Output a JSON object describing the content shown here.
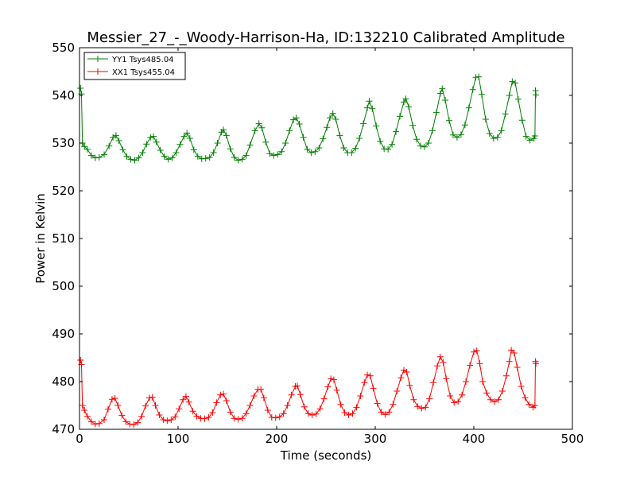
{
  "chart_data": {
    "type": "line",
    "title": "Messier_27_-_Woody-Harrison-Ha, ID:132210 Calibrated Amplitude",
    "xlabel": "Time (seconds)",
    "ylabel": "Power in Kelvin",
    "xlim": [
      0,
      500
    ],
    "ylim": [
      470,
      550
    ],
    "xticks": [
      0,
      100,
      200,
      300,
      400,
      500
    ],
    "yticks": [
      470,
      480,
      490,
      500,
      510,
      520,
      530,
      540,
      550
    ],
    "xtick_labels": [
      "0",
      "100",
      "200",
      "300",
      "400",
      "500"
    ],
    "ytick_labels": [
      "470",
      "480",
      "490",
      "500",
      "510",
      "520",
      "530",
      "540",
      "550"
    ],
    "grid": false,
    "legend": "top-left",
    "marker": "+",
    "series": [
      {
        "name": "YY1 Tsys485.04",
        "color": "#008000",
        "points": [
          [
            1,
            541.5
          ],
          [
            2,
            540.3
          ],
          [
            3,
            530.0
          ],
          [
            5,
            529.3
          ],
          [
            8,
            528.7
          ],
          [
            12,
            527.4
          ],
          [
            16,
            526.9
          ],
          [
            20,
            527.0
          ],
          [
            25,
            527.6
          ],
          [
            30,
            529.4
          ],
          [
            34,
            531.2
          ],
          [
            37,
            531.6
          ],
          [
            40,
            530.5
          ],
          [
            44,
            528.6
          ],
          [
            48,
            527.2
          ],
          [
            52,
            526.6
          ],
          [
            56,
            526.4
          ],
          [
            60,
            526.9
          ],
          [
            64,
            528.0
          ],
          [
            68,
            529.8
          ],
          [
            72,
            531.2
          ],
          [
            75,
            531.4
          ],
          [
            78,
            530.2
          ],
          [
            82,
            528.5
          ],
          [
            86,
            527.2
          ],
          [
            90,
            526.6
          ],
          [
            94,
            526.9
          ],
          [
            98,
            528.0
          ],
          [
            102,
            529.7
          ],
          [
            106,
            531.4
          ],
          [
            109,
            532.1
          ],
          [
            112,
            531.0
          ],
          [
            116,
            528.6
          ],
          [
            120,
            527.2
          ],
          [
            124,
            526.7
          ],
          [
            128,
            526.8
          ],
          [
            132,
            527.0
          ],
          [
            136,
            528.0
          ],
          [
            140,
            530.0
          ],
          [
            144,
            532.3
          ],
          [
            146,
            532.8
          ],
          [
            149,
            531.6
          ],
          [
            153,
            528.8
          ],
          [
            157,
            527.0
          ],
          [
            161,
            526.4
          ],
          [
            165,
            526.6
          ],
          [
            169,
            527.4
          ],
          [
            173,
            529.6
          ],
          [
            178,
            532.6
          ],
          [
            182,
            534.1
          ],
          [
            185,
            533.2
          ],
          [
            189,
            530.2
          ],
          [
            193,
            527.8
          ],
          [
            197,
            527.4
          ],
          [
            201,
            527.6
          ],
          [
            205,
            528.2
          ],
          [
            209,
            530.0
          ],
          [
            213,
            532.6
          ],
          [
            217,
            534.9
          ],
          [
            220,
            535.3
          ],
          [
            223,
            534.0
          ],
          [
            227,
            531.2
          ],
          [
            231,
            528.7
          ],
          [
            235,
            528.0
          ],
          [
            239,
            528.2
          ],
          [
            243,
            529.0
          ],
          [
            247,
            530.9
          ],
          [
            251,
            533.3
          ],
          [
            254,
            535.3
          ],
          [
            257,
            536.2
          ],
          [
            260,
            535.0
          ],
          [
            264,
            531.6
          ],
          [
            268,
            529.0
          ],
          [
            272,
            528.0
          ],
          [
            276,
            528.0
          ],
          [
            280,
            528.9
          ],
          [
            284,
            531.0
          ],
          [
            288,
            534.1
          ],
          [
            292,
            537.4
          ],
          [
            294,
            538.8
          ],
          [
            297,
            537.2
          ],
          [
            301,
            533.6
          ],
          [
            305,
            530.4
          ],
          [
            309,
            528.8
          ],
          [
            313,
            528.7
          ],
          [
            317,
            529.7
          ],
          [
            321,
            532.4
          ],
          [
            325,
            535.6
          ],
          [
            329,
            538.6
          ],
          [
            331,
            539.3
          ],
          [
            334,
            537.6
          ],
          [
            338,
            533.7
          ],
          [
            342,
            530.8
          ],
          [
            346,
            529.4
          ],
          [
            350,
            529.2
          ],
          [
            354,
            530.0
          ],
          [
            358,
            532.6
          ],
          [
            362,
            536.4
          ],
          [
            366,
            540.4
          ],
          [
            368,
            541.4
          ],
          [
            371,
            539.0
          ],
          [
            375,
            534.7
          ],
          [
            379,
            531.7
          ],
          [
            383,
            531.2
          ],
          [
            387,
            531.8
          ],
          [
            391,
            533.8
          ],
          [
            395,
            537.4
          ],
          [
            399,
            541.2
          ],
          [
            402,
            543.8
          ],
          [
            405,
            543.9
          ],
          [
            408,
            540.2
          ],
          [
            412,
            535.0
          ],
          [
            416,
            532.0
          ],
          [
            420,
            531.0
          ],
          [
            424,
            531.2
          ],
          [
            428,
            532.6
          ],
          [
            432,
            536.1
          ],
          [
            436,
            540.0
          ],
          [
            439,
            542.9
          ],
          [
            442,
            542.6
          ],
          [
            445,
            539.2
          ],
          [
            449,
            534.8
          ],
          [
            453,
            531.4
          ],
          [
            457,
            530.6
          ],
          [
            461,
            531.0
          ],
          [
            462,
            531.5
          ],
          [
            462.5,
            541.0
          ],
          [
            463,
            540.1
          ]
        ]
      },
      {
        "name": "XX1 Tsys455.04",
        "color": "#ff0000",
        "points": [
          [
            1,
            484.5
          ],
          [
            2,
            483.6
          ],
          [
            3,
            475.0
          ],
          [
            5,
            474.0
          ],
          [
            8,
            472.7
          ],
          [
            12,
            471.6
          ],
          [
            16,
            471.1
          ],
          [
            20,
            471.2
          ],
          [
            25,
            472.0
          ],
          [
            29,
            474.2
          ],
          [
            33,
            476.3
          ],
          [
            36,
            476.5
          ],
          [
            39,
            475.0
          ],
          [
            43,
            472.9
          ],
          [
            47,
            471.6
          ],
          [
            51,
            471.1
          ],
          [
            55,
            471.0
          ],
          [
            59,
            471.4
          ],
          [
            63,
            472.7
          ],
          [
            67,
            474.9
          ],
          [
            71,
            476.6
          ],
          [
            74,
            476.7
          ],
          [
            77,
            475.0
          ],
          [
            81,
            473.0
          ],
          [
            85,
            472.0
          ],
          [
            89,
            471.8
          ],
          [
            93,
            472.0
          ],
          [
            97,
            472.6
          ],
          [
            101,
            474.3
          ],
          [
            105,
            476.2
          ],
          [
            108,
            476.9
          ],
          [
            111,
            475.7
          ],
          [
            115,
            473.8
          ],
          [
            119,
            472.7
          ],
          [
            123,
            472.3
          ],
          [
            127,
            472.2
          ],
          [
            131,
            472.5
          ],
          [
            135,
            473.5
          ],
          [
            139,
            475.6
          ],
          [
            143,
            477.2
          ],
          [
            146,
            477.4
          ],
          [
            149,
            476.0
          ],
          [
            153,
            473.6
          ],
          [
            157,
            472.3
          ],
          [
            161,
            472.1
          ],
          [
            165,
            472.3
          ],
          [
            169,
            473.3
          ],
          [
            173,
            475.0
          ],
          [
            177,
            477.0
          ],
          [
            181,
            478.4
          ],
          [
            184,
            478.4
          ],
          [
            187,
            476.6
          ],
          [
            191,
            474.0
          ],
          [
            195,
            472.5
          ],
          [
            199,
            472.4
          ],
          [
            203,
            472.6
          ],
          [
            207,
            473.3
          ],
          [
            211,
            475.0
          ],
          [
            215,
            477.2
          ],
          [
            219,
            479.0
          ],
          [
            221,
            479.1
          ],
          [
            224,
            477.3
          ],
          [
            228,
            474.7
          ],
          [
            232,
            473.3
          ],
          [
            236,
            473.0
          ],
          [
            240,
            473.2
          ],
          [
            244,
            474.3
          ],
          [
            248,
            476.4
          ],
          [
            252,
            478.9
          ],
          [
            255,
            480.6
          ],
          [
            258,
            480.4
          ],
          [
            261,
            478.2
          ],
          [
            265,
            475.2
          ],
          [
            269,
            473.5
          ],
          [
            273,
            473.0
          ],
          [
            277,
            473.3
          ],
          [
            281,
            474.6
          ],
          [
            285,
            477.0
          ],
          [
            289,
            479.8
          ],
          [
            292,
            481.4
          ],
          [
            295,
            481.2
          ],
          [
            298,
            478.6
          ],
          [
            302,
            475.4
          ],
          [
            306,
            473.6
          ],
          [
            310,
            473.1
          ],
          [
            314,
            473.6
          ],
          [
            318,
            475.2
          ],
          [
            322,
            478.0
          ],
          [
            326,
            480.8
          ],
          [
            329,
            482.4
          ],
          [
            332,
            482.0
          ],
          [
            335,
            479.2
          ],
          [
            339,
            476.2
          ],
          [
            343,
            474.8
          ],
          [
            347,
            474.4
          ],
          [
            351,
            474.6
          ],
          [
            355,
            476.4
          ],
          [
            359,
            479.8
          ],
          [
            363,
            483.3
          ],
          [
            366,
            485.2
          ],
          [
            369,
            484.0
          ],
          [
            372,
            480.6
          ],
          [
            376,
            477.0
          ],
          [
            380,
            475.6
          ],
          [
            384,
            475.8
          ],
          [
            388,
            477.2
          ],
          [
            392,
            480.0
          ],
          [
            396,
            483.4
          ],
          [
            400,
            486.2
          ],
          [
            403,
            486.5
          ],
          [
            406,
            483.8
          ],
          [
            409,
            480.0
          ],
          [
            413,
            477.6
          ],
          [
            417,
            476.2
          ],
          [
            421,
            475.8
          ],
          [
            425,
            476.2
          ],
          [
            429,
            478.0
          ],
          [
            433,
            481.2
          ],
          [
            436,
            484.2
          ],
          [
            438,
            486.6
          ],
          [
            441,
            486.0
          ],
          [
            444,
            483.0
          ],
          [
            448,
            479.0
          ],
          [
            452,
            476.6
          ],
          [
            456,
            475.2
          ],
          [
            460,
            474.6
          ],
          [
            462,
            475.0
          ],
          [
            462.5,
            484.2
          ],
          [
            463,
            483.8
          ]
        ]
      }
    ]
  }
}
